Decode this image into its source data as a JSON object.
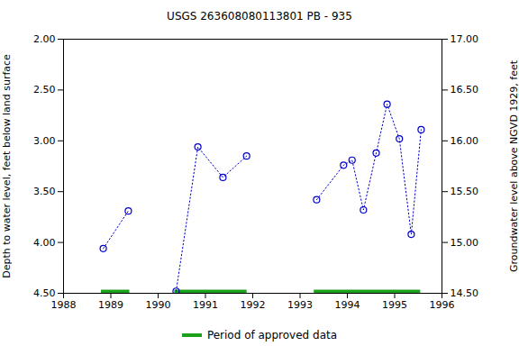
{
  "chart_data": {
    "type": "line",
    "title": "USGS 263608080113801 PB - 935",
    "y_label": "Depth to water level, feet below land surface",
    "y2_label": "Groundwater level above NGVD 1929, feet",
    "x": [
      1988.84,
      1989.37,
      null,
      1990.38,
      1990.84,
      1991.37,
      1991.87,
      null,
      1993.35,
      1993.92,
      1994.1,
      1994.34,
      1994.61,
      1994.84,
      1995.1,
      1995.35,
      1995.56
    ],
    "values": [
      4.06,
      3.69,
      null,
      4.48,
      3.06,
      3.36,
      3.15,
      null,
      3.58,
      3.24,
      3.19,
      3.68,
      3.12,
      2.64,
      2.98,
      3.92,
      2.89
    ],
    "color": "#0000cc",
    "marker": "circle",
    "line_style": "dotted",
    "xlim": [
      1988,
      1996
    ],
    "xticks": [
      1988,
      1989,
      1990,
      1991,
      1992,
      1993,
      1994,
      1995,
      1996
    ],
    "ylim": [
      4.5,
      2.0
    ],
    "yticks": [
      {
        "value": 2.0,
        "label": "2.00"
      },
      {
        "value": 2.5,
        "label": "2.50"
      },
      {
        "value": 3.0,
        "label": "3.00"
      },
      {
        "value": 3.5,
        "label": "3.50"
      },
      {
        "value": 4.0,
        "label": "4.00"
      },
      {
        "value": 4.5,
        "label": "4.50"
      }
    ],
    "y2lim": [
      14.5,
      17.0
    ],
    "y2ticks": [
      {
        "value": 14.5,
        "label": "14.50"
      },
      {
        "value": 15.0,
        "label": "15.00"
      },
      {
        "value": 15.5,
        "label": "15.50"
      },
      {
        "value": 16.0,
        "label": "16.00"
      },
      {
        "value": 16.5,
        "label": "16.50"
      },
      {
        "value": 17.0,
        "label": "17.00"
      }
    ],
    "approved_periods": {
      "name": "Period of approved data",
      "color": "#1aa01a",
      "spans": [
        [
          1988.8,
          1989.4
        ],
        [
          1990.35,
          1991.88
        ],
        [
          1993.3,
          1995.55
        ]
      ]
    },
    "grid": false,
    "legend": "bottom"
  }
}
